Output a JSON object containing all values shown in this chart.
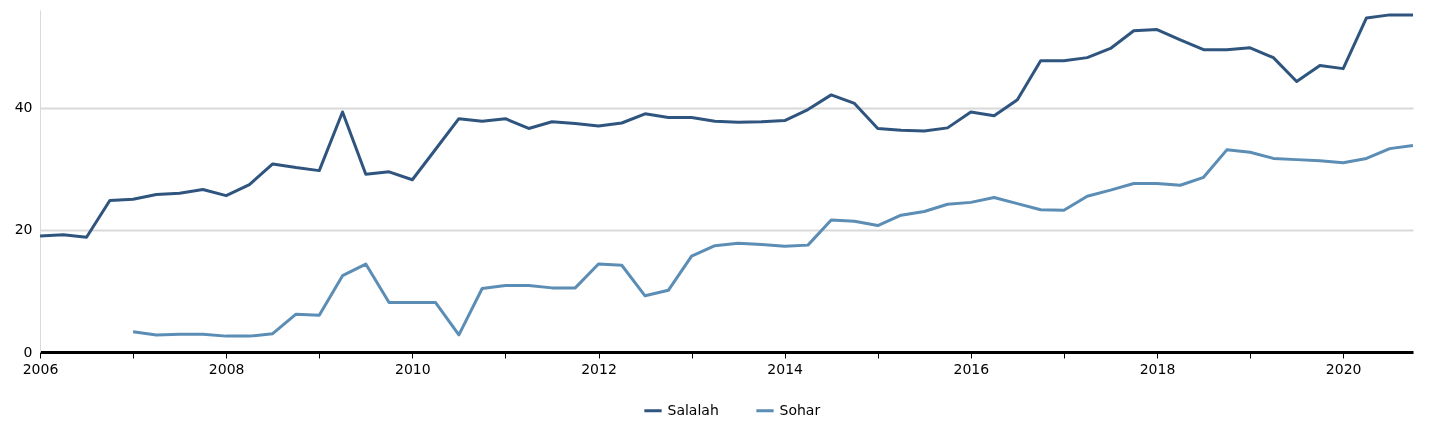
{
  "chart_data": {
    "type": "line",
    "xlim": [
      2006,
      2020.75
    ],
    "xticks": [
      2006,
      {
        "value": 2007,
        "label": null
      },
      2008,
      {
        "value": 2009,
        "label": null
      },
      2010,
      {
        "value": 2011,
        "label": null
      },
      2012,
      {
        "value": 2013,
        "label": null
      },
      2014,
      {
        "value": 2015,
        "label": null
      },
      2016,
      {
        "value": 2017,
        "label": null
      },
      2018,
      {
        "value": 2019,
        "label": null
      },
      2020
    ],
    "ylim": [
      0,
      56
    ],
    "yticks": [
      0,
      20,
      40
    ],
    "grid": "y",
    "legend": "bottom",
    "line_style": "solid",
    "series": [
      {
        "name": "Salalah",
        "color": "#2f557f",
        "x": [
          2006,
          2006.25,
          2006.5,
          2006.75,
          2007,
          2007.25,
          2007.5,
          2007.75,
          2008,
          2008.25,
          2008.5,
          2008.75,
          2009,
          2009.25,
          2009.5,
          2009.75,
          2010,
          2010.25,
          2010.5,
          2010.75,
          2011,
          2011.25,
          2011.5,
          2011.75,
          2012,
          2012.25,
          2012.5,
          2012.75,
          2013,
          2013.25,
          2013.5,
          2013.75,
          2014,
          2014.25,
          2014.5,
          2014.75,
          2015,
          2015.25,
          2015.5,
          2015.75,
          2016,
          2016.25,
          2016.5,
          2016.75,
          2017,
          2017.25,
          2017.5,
          2017.75,
          2018,
          2018.25,
          2018.5,
          2018.75,
          2019,
          2019.25,
          2019.5,
          2019.75,
          2020,
          2020.25,
          2020.5,
          2020.75
        ],
        "values": [
          19.0,
          19.2,
          18.8,
          24.8,
          25.0,
          25.8,
          26.0,
          26.6,
          25.6,
          27.4,
          30.8,
          30.2,
          29.7,
          39.3,
          29.1,
          29.5,
          28.2,
          33.2,
          38.2,
          37.8,
          38.2,
          36.6,
          37.7,
          37.4,
          37.0,
          37.5,
          39.0,
          38.4,
          38.4,
          37.8,
          37.6,
          37.7,
          37.9,
          39.7,
          42.1,
          40.7,
          36.6,
          36.3,
          36.2,
          36.7,
          39.3,
          38.7,
          41.3,
          47.7,
          47.7,
          48.2,
          49.7,
          52.6,
          52.8,
          51.1,
          49.5,
          49.5,
          49.8,
          48.2,
          44.3,
          46.9,
          46.4,
          54.7,
          55.2,
          55.2
        ]
      },
      {
        "name": "Sohar",
        "color": "#5b8db5",
        "x": [
          2007,
          2007.25,
          2007.5,
          2007.75,
          2008,
          2008.25,
          2008.5,
          2008.75,
          2009,
          2009.25,
          2009.5,
          2009.75,
          2010,
          2010.25,
          2010.5,
          2010.75,
          2011,
          2011.25,
          2011.5,
          2011.75,
          2012,
          2012.25,
          2012.5,
          2012.75,
          2013,
          2013.25,
          2013.5,
          2013.75,
          2014,
          2014.25,
          2014.5,
          2014.75,
          2015,
          2015.25,
          2015.5,
          2015.75,
          2016,
          2016.25,
          2016.5,
          2016.75,
          2017,
          2017.25,
          2017.5,
          2017.75,
          2018,
          2018.25,
          2018.5,
          2018.75,
          2019,
          2019.25,
          2019.5,
          2019.75,
          2020,
          2020.25,
          2020.5,
          2020.75
        ],
        "values": [
          3.3,
          2.8,
          2.9,
          2.9,
          2.6,
          2.6,
          3.0,
          6.2,
          6.0,
          12.5,
          14.4,
          8.1,
          8.1,
          8.1,
          2.8,
          10.4,
          10.9,
          10.9,
          10.5,
          10.5,
          14.4,
          14.2,
          9.2,
          10.1,
          15.7,
          17.4,
          17.8,
          17.6,
          17.3,
          17.5,
          21.6,
          21.4,
          20.7,
          22.4,
          23.0,
          24.2,
          24.5,
          25.3,
          24.3,
          23.3,
          23.2,
          25.5,
          26.5,
          27.6,
          27.6,
          27.3,
          28.6,
          33.1,
          32.7,
          31.7,
          31.5,
          31.3,
          31.0,
          31.7,
          33.3,
          33.8
        ]
      }
    ]
  }
}
